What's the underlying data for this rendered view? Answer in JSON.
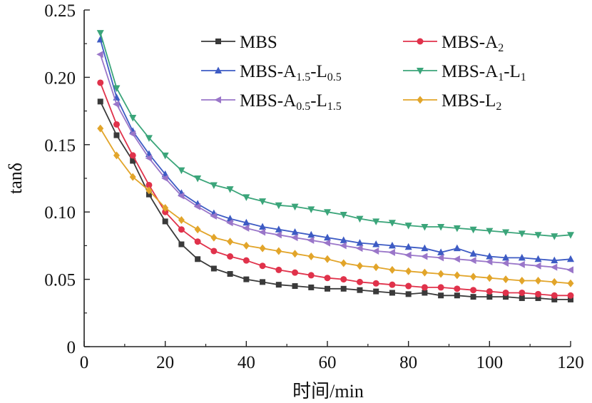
{
  "chart_data": {
    "type": "line",
    "xlabel": "时间/min",
    "ylabel": "tanδ",
    "xlim": [
      0,
      120
    ],
    "ylim": [
      0,
      0.25
    ],
    "x_ticks": [
      "0",
      "20",
      "40",
      "60",
      "80",
      "100",
      "120"
    ],
    "y_ticks": [
      "0",
      "0.05",
      "0.10",
      "0.15",
      "0.20",
      "0.25"
    ],
    "grid": false,
    "legend_position": "top-right",
    "x": [
      4,
      8,
      12,
      16,
      20,
      24,
      28,
      32,
      36,
      40,
      44,
      48,
      52,
      56,
      60,
      64,
      68,
      72,
      76,
      80,
      84,
      88,
      92,
      96,
      100,
      104,
      108,
      112,
      116,
      120
    ],
    "series": [
      {
        "name": "MBS",
        "legend": {
          "base": "MBS",
          "parts": []
        },
        "color": "#3a3a3a",
        "marker": "square",
        "values": [
          0.182,
          0.157,
          0.138,
          0.113,
          0.093,
          0.076,
          0.065,
          0.058,
          0.054,
          0.05,
          0.048,
          0.046,
          0.045,
          0.044,
          0.043,
          0.043,
          0.042,
          0.041,
          0.04,
          0.039,
          0.04,
          0.038,
          0.038,
          0.037,
          0.037,
          0.037,
          0.036,
          0.036,
          0.035,
          0.035
        ]
      },
      {
        "name": "MBS-A2",
        "legend": {
          "base": "MBS-A",
          "parts": [
            {
              "sub": "2",
              "after": ""
            }
          ]
        },
        "color": "#e0324b",
        "marker": "circle",
        "values": [
          0.196,
          0.165,
          0.142,
          0.12,
          0.1,
          0.087,
          0.078,
          0.071,
          0.067,
          0.064,
          0.06,
          0.057,
          0.055,
          0.053,
          0.051,
          0.05,
          0.048,
          0.047,
          0.046,
          0.045,
          0.044,
          0.044,
          0.043,
          0.042,
          0.041,
          0.04,
          0.04,
          0.039,
          0.038,
          0.038
        ]
      },
      {
        "name": "MBS-A1.5-L0.5",
        "legend": {
          "base": "MBS-A",
          "parts": [
            {
              "sub": "1.5",
              "after": "-L"
            },
            {
              "sub": "0.5",
              "after": ""
            }
          ]
        },
        "color": "#3d5bc4",
        "marker": "triangle-up",
        "values": [
          0.228,
          0.185,
          0.16,
          0.143,
          0.128,
          0.114,
          0.106,
          0.099,
          0.095,
          0.092,
          0.089,
          0.087,
          0.085,
          0.083,
          0.081,
          0.079,
          0.077,
          0.076,
          0.075,
          0.074,
          0.073,
          0.07,
          0.073,
          0.069,
          0.067,
          0.066,
          0.066,
          0.065,
          0.064,
          0.065
        ]
      },
      {
        "name": "MBS-A1-L1",
        "legend": {
          "base": "MBS-A",
          "parts": [
            {
              "sub": "1",
              "after": "-L"
            },
            {
              "sub": "1",
              "after": ""
            }
          ]
        },
        "color": "#3ba57a",
        "marker": "triangle-down",
        "values": [
          0.233,
          0.192,
          0.17,
          0.155,
          0.142,
          0.131,
          0.125,
          0.12,
          0.117,
          0.111,
          0.108,
          0.105,
          0.104,
          0.102,
          0.1,
          0.098,
          0.095,
          0.093,
          0.092,
          0.09,
          0.089,
          0.089,
          0.088,
          0.087,
          0.086,
          0.085,
          0.084,
          0.083,
          0.082,
          0.083
        ]
      },
      {
        "name": "MBS-A0.5-L1.5",
        "legend": {
          "base": "MBS-A",
          "parts": [
            {
              "sub": "0.5",
              "after": "-L"
            },
            {
              "sub": "1.5",
              "after": ""
            }
          ]
        },
        "color": "#9a76c9",
        "marker": "triangle-left",
        "values": [
          0.217,
          0.18,
          0.158,
          0.14,
          0.125,
          0.112,
          0.104,
          0.097,
          0.092,
          0.088,
          0.085,
          0.083,
          0.081,
          0.079,
          0.077,
          0.075,
          0.073,
          0.071,
          0.07,
          0.068,
          0.067,
          0.066,
          0.065,
          0.064,
          0.063,
          0.062,
          0.061,
          0.06,
          0.059,
          0.057
        ]
      },
      {
        "name": "MBS-L2",
        "legend": {
          "base": "MBS-L",
          "parts": [
            {
              "sub": "2",
              "after": ""
            }
          ]
        },
        "color": "#e2a52a",
        "marker": "diamond",
        "values": [
          0.162,
          0.142,
          0.126,
          0.116,
          0.103,
          0.094,
          0.087,
          0.081,
          0.078,
          0.075,
          0.073,
          0.071,
          0.069,
          0.067,
          0.065,
          0.062,
          0.06,
          0.059,
          0.057,
          0.056,
          0.055,
          0.054,
          0.053,
          0.052,
          0.051,
          0.05,
          0.049,
          0.049,
          0.048,
          0.047
        ]
      }
    ]
  }
}
